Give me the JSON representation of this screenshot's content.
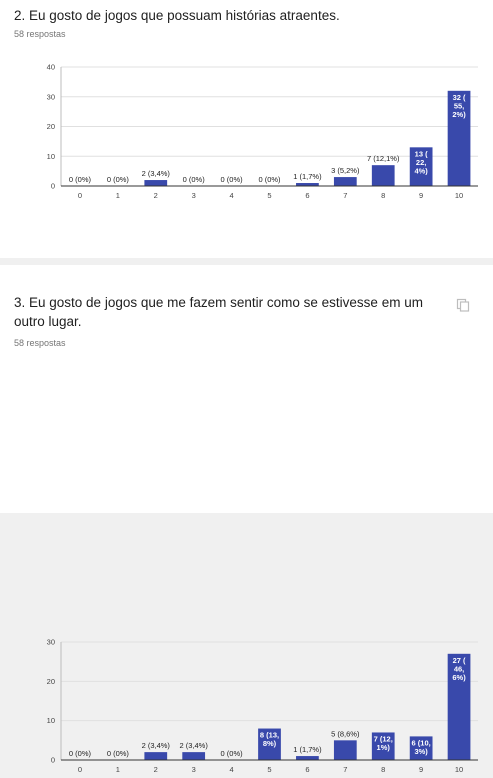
{
  "questions": [
    {
      "title": "2. Eu gosto de jogos que possuam histórias atraentes.",
      "responses": "58 respostas"
    },
    {
      "title": "3. Eu gosto de jogos que me fazem sentir como se estivesse em um outro lugar.",
      "responses": "58 respostas"
    }
  ],
  "colors": {
    "bar": "#3949ab",
    "grid": "#e0e0e0",
    "axis": "#333333"
  },
  "chart_data": [
    {
      "type": "bar",
      "categories": [
        "0",
        "1",
        "2",
        "3",
        "4",
        "5",
        "6",
        "7",
        "8",
        "9",
        "10"
      ],
      "values": [
        0,
        0,
        2,
        0,
        0,
        0,
        1,
        3,
        7,
        13,
        32
      ],
      "labels": [
        "0 (0%)",
        "0 (0%)",
        "2 (3,4%)",
        "0 (0%)",
        "0 (0%)",
        "0 (0%)",
        "1 (1,7%)",
        "3 (5,2%)",
        "7 (12,1%)",
        "13 (22,4%)",
        "32 (55,2%)"
      ],
      "inside_labels": [
        [
          "13 (",
          "22,",
          "4%)"
        ],
        [
          "32 (",
          "55,",
          "2%)"
        ]
      ],
      "yticks": [
        0,
        10,
        20,
        30,
        40
      ],
      "ylim": [
        0,
        40
      ],
      "grid": true
    },
    {
      "type": "bar",
      "categories": [
        "0",
        "1",
        "2",
        "3",
        "4",
        "5",
        "6",
        "7",
        "8",
        "9",
        "10"
      ],
      "values": [
        0,
        0,
        2,
        2,
        0,
        8,
        1,
        5,
        7,
        6,
        27
      ],
      "labels": [
        "0 (0%)",
        "0 (0%)",
        "2 (3,4%)",
        "2 (3,4%)",
        "0 (0%)",
        "8 (13,8%)",
        "1 (1,7%)",
        "5 (8,6%)",
        "7 (12,1%)",
        "6 (10,3%)",
        "27 (46,6%)"
      ],
      "inside_labels": [
        [
          "8 (13,",
          "8%)"
        ],
        [
          "7 (12,",
          "1%)"
        ],
        [
          "6 (10,",
          "3%)"
        ],
        [
          "27 (",
          "46,",
          "6%)"
        ]
      ],
      "yticks": [
        0,
        10,
        20,
        30
      ],
      "ylim": [
        0,
        30
      ],
      "grid": true
    }
  ]
}
